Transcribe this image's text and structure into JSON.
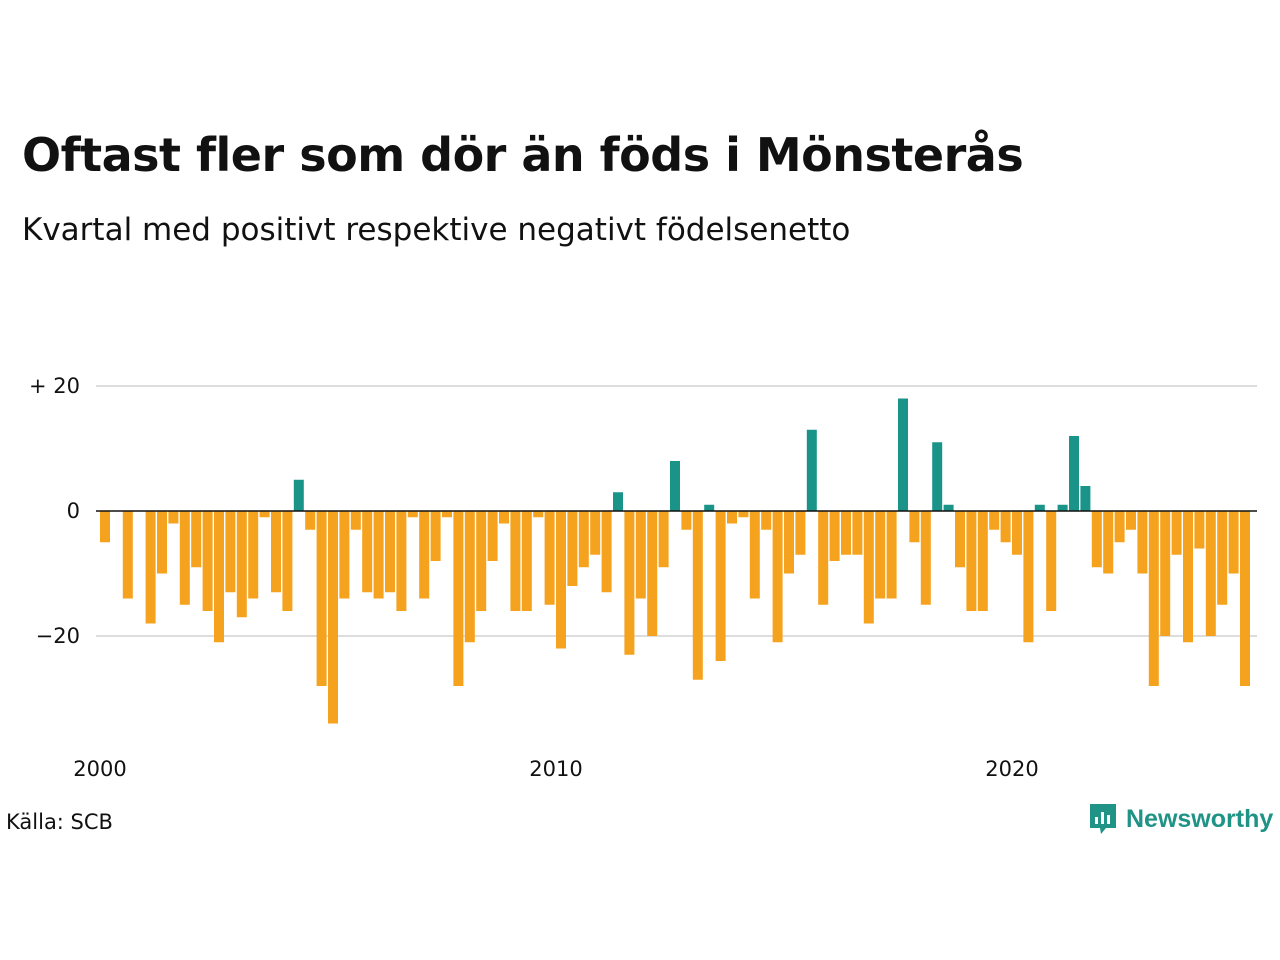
{
  "title": "Oftast fler som dör än föds i Mönsterås",
  "subtitle": "Kvartal med positivt respektive negativt födelsenetto",
  "source": "Källa: SCB",
  "brand": {
    "name": "Newsworthy",
    "icon": "newsworthy-logo-icon",
    "color": "#1f9386"
  },
  "colors": {
    "positive": "#1a9488",
    "negative": "#f5a21f",
    "grid": "#dddddd",
    "zero_line": "#111111"
  },
  "chart_data": {
    "type": "bar",
    "title": "Oftast fler som dör än föds i Mönsterås",
    "subtitle": "Kvartal med positivt respektive negativt födelsenetto",
    "xlabel": "",
    "ylabel": "",
    "x_start": 2000,
    "periods_per_year": 4,
    "ylim": [
      -36,
      24
    ],
    "yticks": [
      {
        "value": 20,
        "label": "+ 20"
      },
      {
        "value": 0,
        "label": "0"
      },
      {
        "value": -20,
        "label": "−20"
      }
    ],
    "xticks": [
      {
        "year": 2000,
        "label": "2000"
      },
      {
        "year": 2010,
        "label": "2010"
      },
      {
        "year": 2020,
        "label": "2020"
      }
    ],
    "grid": true,
    "values": [
      -5,
      0,
      -14,
      0,
      -18,
      -10,
      -2,
      -15,
      -9,
      -16,
      -21,
      -13,
      -17,
      -14,
      -1,
      -13,
      -16,
      5,
      -3,
      -28,
      -34,
      -14,
      -3,
      -13,
      -14,
      -13,
      -16,
      -1,
      -14,
      -8,
      -1,
      -28,
      -21,
      -16,
      -8,
      -2,
      -16,
      -16,
      -1,
      -15,
      -22,
      -12,
      -9,
      -7,
      -13,
      3,
      -23,
      -14,
      -20,
      -9,
      8,
      -3,
      -27,
      1,
      -24,
      -2,
      -1,
      -14,
      -3,
      -21,
      -10,
      -7,
      13,
      -15,
      -8,
      -7,
      -7,
      -18,
      -14,
      -14,
      18,
      -5,
      -15,
      11,
      1,
      -9,
      -16,
      -16,
      -3,
      -5,
      -7,
      -21,
      1,
      -16,
      1,
      12,
      4,
      -9,
      -10,
      -5,
      -3,
      -10,
      -28,
      -20,
      -7,
      -21,
      -6,
      -20,
      -15,
      -10,
      -28
    ]
  }
}
